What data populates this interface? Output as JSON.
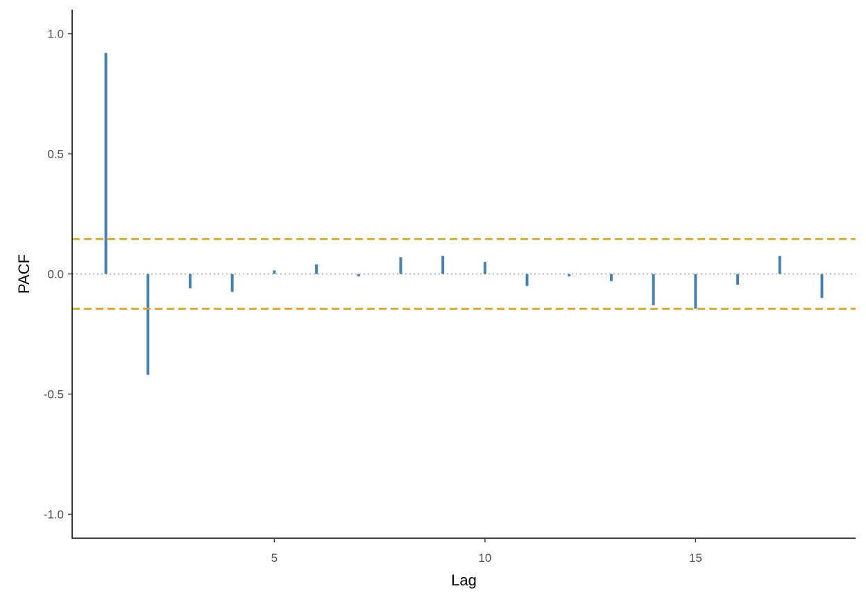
{
  "chart_data": {
    "type": "bar",
    "title": "",
    "xlabel": "Lag",
    "ylabel": "PACF",
    "xlim": [
      0.2,
      18.8
    ],
    "ylim": [
      -1.1,
      1.1
    ],
    "x_ticks": [
      5,
      10,
      15
    ],
    "x_tick_labels": [
      "5",
      "10",
      "15"
    ],
    "y_ticks": [
      -1.0,
      -0.5,
      0.0,
      0.5,
      1.0
    ],
    "y_tick_labels": [
      "-1.0",
      "-0.5",
      "0.0",
      "0.5",
      "1.0"
    ],
    "grid": false,
    "series": [
      {
        "lags": [
          1,
          2,
          3,
          4,
          5,
          6,
          7,
          8,
          9,
          10,
          11,
          12,
          13,
          14,
          15,
          16,
          17,
          18
        ],
        "values": [
          0.92,
          -0.42,
          -0.06,
          -0.075,
          0.015,
          0.04,
          -0.01,
          0.07,
          0.075,
          0.05,
          -0.05,
          -0.01,
          -0.03,
          -0.13,
          -0.145,
          -0.045,
          0.075,
          -0.1
        ],
        "color": "#4682b4"
      }
    ],
    "zero_line": {
      "value": 0,
      "color": "#a0a0a0",
      "style": "dotted"
    },
    "confidence_bounds": {
      "values": [
        0.145,
        -0.145
      ],
      "color": "#daa520",
      "style": "dashed"
    }
  }
}
